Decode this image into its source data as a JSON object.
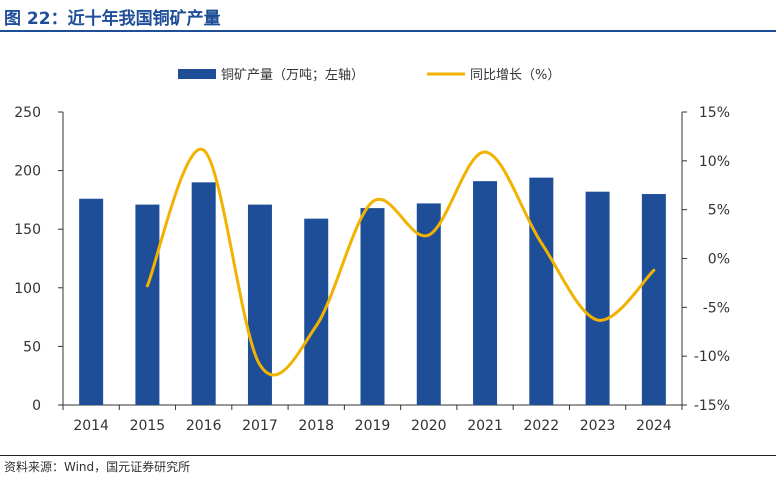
{
  "figure": {
    "title": "图 22：近十年我国铜矿产量",
    "source": "资料来源：Wind，国元证券研究所"
  },
  "colors": {
    "bar": "#1f4e99",
    "line": "#f2b200",
    "title": "#1f4e99",
    "axis_text": "#333333"
  },
  "chart_data": {
    "type": "bar",
    "title": "",
    "categories": [
      "2014",
      "2015",
      "2016",
      "2017",
      "2018",
      "2019",
      "2020",
      "2021",
      "2022",
      "2023",
      "2024"
    ],
    "series": [
      {
        "name": "铜矿产量（万吨；左轴）",
        "type": "bar",
        "axis": "left",
        "values": [
          176,
          171,
          190,
          171,
          159,
          168,
          172,
          191,
          194,
          182,
          180
        ]
      },
      {
        "name": "同比增长（%）",
        "type": "line",
        "axis": "right",
        "values": [
          null,
          -2.8,
          11.1,
          -10.9,
          -6.9,
          5.8,
          2.4,
          10.9,
          1.6,
          -6.3,
          -1.2
        ]
      }
    ],
    "y_left": {
      "min": 0,
      "max": 250,
      "ticks": [
        0,
        50,
        100,
        150,
        200,
        250
      ]
    },
    "y_right": {
      "min": -15,
      "max": 15,
      "ticks": [
        "-15%",
        "-10%",
        "-5%",
        "0%",
        "5%",
        "10%",
        "15%"
      ],
      "tick_values": [
        -15,
        -10,
        -5,
        0,
        5,
        10,
        15
      ]
    },
    "grid": false,
    "legend": "top-center"
  }
}
